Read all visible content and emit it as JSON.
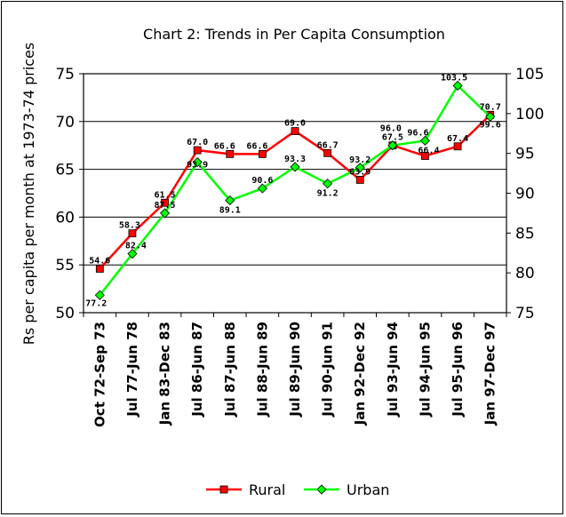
{
  "chart_data": {
    "type": "line",
    "title": "Chart 2: Trends in Per Capita Consumption",
    "ylabel": "Rs per capita per month at 1973-74 prices",
    "ylim": [
      50,
      75
    ],
    "y2lim": [
      75,
      105
    ],
    "yticks": [
      50,
      55,
      60,
      65,
      70,
      75
    ],
    "y2ticks": [
      75,
      80,
      85,
      90,
      95,
      100,
      105
    ],
    "grid": true,
    "legend_position": "bottom",
    "colors": {
      "Rural": "#ff0000",
      "Urban": "#00ff00"
    },
    "categories": [
      "Oct 72-Sep 73",
      "Jul 77-Jun 78",
      "Jan 83-Dec 83",
      "Jul 86-Jun 87",
      "Jul 87-Jun 88",
      "Jul 88-Jun 89",
      "Jul 89-Jun 90",
      "Jul 90-Jun 91",
      "Jan 92-Dec 92",
      "Jul 93-Jun 94",
      "Jul 94-Jun 95",
      "Jul 95-Jun 96",
      "Jan 97-Dec 97"
    ],
    "series": [
      {
        "name": "Rural",
        "axis": "left",
        "marker": "square",
        "values": [
          54.6,
          58.3,
          61.5,
          67.0,
          66.6,
          66.6,
          69.0,
          66.7,
          63.9,
          67.5,
          66.4,
          67.4,
          70.7
        ],
        "labels": [
          "54.6",
          "58.3",
          "61.5",
          "67.0",
          "66.6",
          "66.6",
          "69.0",
          "66.7",
          "63.9",
          "67.5",
          "66.4",
          "67.4",
          "70.7"
        ]
      },
      {
        "name": "Urban",
        "axis": "right",
        "marker": "diamond",
        "values": [
          77.2,
          82.4,
          87.5,
          93.9,
          89.1,
          90.6,
          93.3,
          91.2,
          93.2,
          96.0,
          96.6,
          103.5,
          99.6
        ],
        "labels": [
          "77.2",
          "82.4",
          "87.5",
          "93.9",
          "89.1",
          "90.6",
          "93.3",
          "91.2",
          "93.2",
          "96.0",
          "96.6",
          "103.5",
          "99.6"
        ]
      }
    ]
  }
}
